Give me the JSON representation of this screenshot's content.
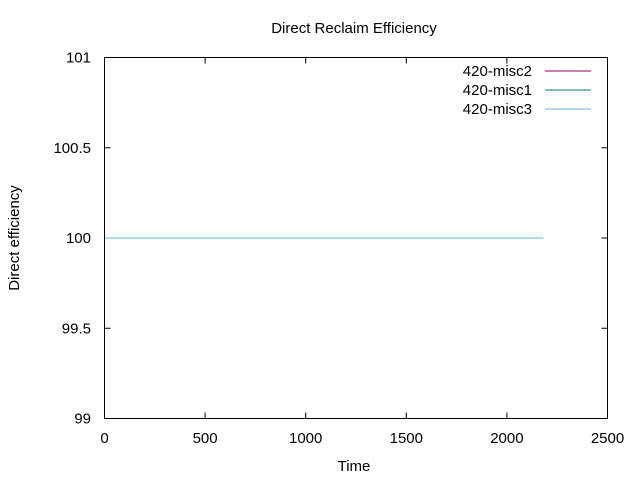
{
  "chart_data": {
    "type": "line",
    "title": "Direct Reclaim Efficiency",
    "xlabel": "Time",
    "ylabel": "Direct efficiency",
    "xlim": [
      0,
      2500
    ],
    "ylim": [
      99,
      101
    ],
    "x_ticks": [
      {
        "value": 0,
        "label": "0"
      },
      {
        "value": 500,
        "label": "500"
      },
      {
        "value": 1000,
        "label": "1000"
      },
      {
        "value": 1500,
        "label": "1500"
      },
      {
        "value": 2000,
        "label": "2000"
      },
      {
        "value": 2500,
        "label": "2500"
      }
    ],
    "y_ticks": [
      {
        "value": 99,
        "label": "99"
      },
      {
        "value": 99.5,
        "label": "99.5"
      },
      {
        "value": 100,
        "label": "100"
      },
      {
        "value": 100.5,
        "label": "100.5"
      },
      {
        "value": 101,
        "label": "101"
      }
    ],
    "grid": false,
    "legend_position": "top-right",
    "series": [
      {
        "name": "420-misc2",
        "color": "#990066",
        "x": [
          0,
          2180
        ],
        "y": [
          100,
          100
        ]
      },
      {
        "name": "420-misc1",
        "color": "#008060",
        "x": [
          0,
          2180
        ],
        "y": [
          100,
          100
        ]
      },
      {
        "name": "420-misc3",
        "color": "#5ab4d0",
        "x": [
          0,
          2180
        ],
        "y": [
          100,
          100
        ]
      }
    ]
  }
}
